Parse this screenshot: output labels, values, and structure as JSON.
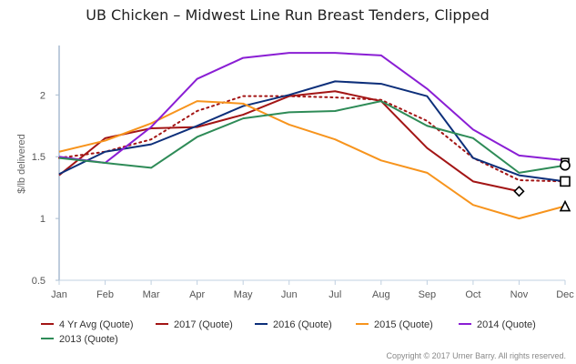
{
  "chart_data": {
    "type": "line",
    "title": "UB Chicken – Midwest Line Run Breast Tenders, Clipped",
    "ylabel": "$/lb delivered",
    "xlabel": "",
    "categories": [
      "Jan",
      "Feb",
      "Mar",
      "Apr",
      "May",
      "Jun",
      "Jul",
      "Aug",
      "Sep",
      "Oct",
      "Nov",
      "Dec"
    ],
    "ylim": [
      0.5,
      2.4
    ],
    "yticks": [
      0.5,
      1,
      1.5,
      2
    ],
    "ytick_labels": [
      "0.5",
      "1",
      "1.5",
      "2"
    ],
    "grid": false,
    "legend_position": "bottom",
    "series": [
      {
        "name": "4 Yr Avg (Quote)",
        "color": "#a31515",
        "dash": "dotted",
        "values": [
          1.49,
          1.54,
          1.64,
          1.87,
          1.99,
          1.99,
          1.98,
          1.96,
          1.79,
          1.49,
          1.31,
          1.3
        ]
      },
      {
        "name": "2017 (Quote)",
        "color": "#a31515",
        "dash": "solid",
        "values": [
          1.35,
          1.65,
          1.73,
          1.74,
          1.84,
          1.99,
          2.03,
          1.95,
          1.57,
          1.3,
          1.22,
          null
        ],
        "end_marker": "diamond"
      },
      {
        "name": "2016 (Quote)",
        "color": "#0d2f7a",
        "dash": "solid",
        "values": [
          1.36,
          1.54,
          1.6,
          1.75,
          1.91,
          2.0,
          2.11,
          2.09,
          1.99,
          1.49,
          1.35,
          1.3
        ],
        "end_marker": "square"
      },
      {
        "name": "2015 (Quote)",
        "color": "#f7941d",
        "dash": "solid",
        "values": [
          1.54,
          1.63,
          1.77,
          1.95,
          1.93,
          1.76,
          1.64,
          1.47,
          1.37,
          1.11,
          1.0,
          1.1
        ],
        "end_marker": "triangle"
      },
      {
        "name": "2014 (Quote)",
        "color": "#8a1ed4",
        "dash": "solid",
        "values": [
          1.5,
          1.45,
          1.74,
          2.13,
          2.3,
          2.34,
          2.34,
          2.32,
          2.05,
          1.72,
          1.51,
          1.47
        ],
        "end_marker": "hbar"
      },
      {
        "name": "2013 (Quote)",
        "color": "#2e8b57",
        "dash": "solid",
        "values": [
          1.49,
          1.45,
          1.41,
          1.66,
          1.81,
          1.86,
          1.87,
          1.95,
          1.75,
          1.65,
          1.37,
          1.43
        ],
        "end_marker": "circle"
      }
    ],
    "credit": "Copyright © 2017 Urner Barry. All rights reserved."
  }
}
